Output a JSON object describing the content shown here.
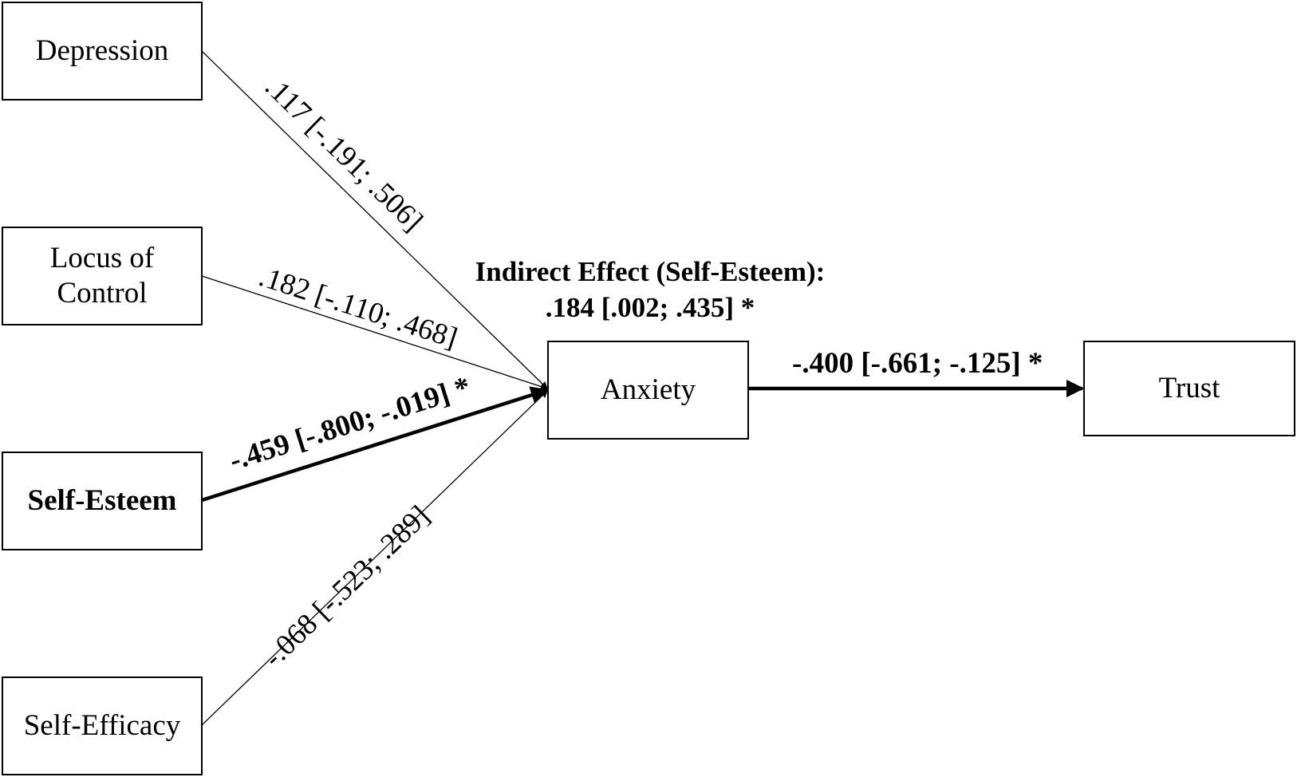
{
  "nodes": {
    "depression": "Depression",
    "locus_line1": "Locus of",
    "locus_line2": "Control",
    "self_esteem": "Self-Esteem",
    "self_efficacy": "Self-Efficacy",
    "anxiety": "Anxiety",
    "trust": "Trust"
  },
  "paths": {
    "depression_anxiety": ".117 [-.191; .506]",
    "locus_anxiety": ".182 [-.110; .468]",
    "self_esteem_anxiety": "-.459 [-.800; -.019] *",
    "self_efficacy_anxiety": "-.068 [-.523; .289]",
    "anxiety_trust": "-.400 [-.661; -.125] *"
  },
  "indirect_effect": {
    "title": "Indirect Effect (Self-Esteem):",
    "value": ".184 [.002; .435] *"
  }
}
